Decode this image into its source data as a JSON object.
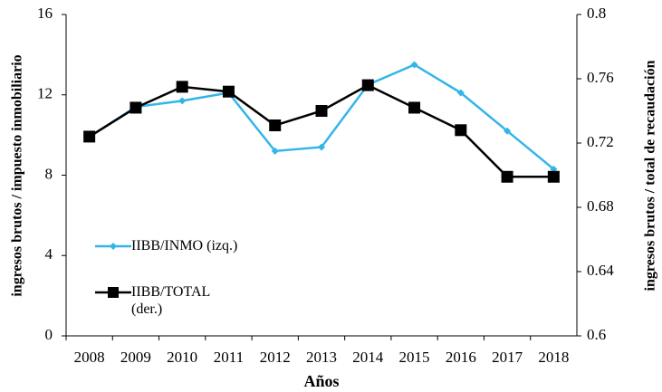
{
  "chart_data": {
    "type": "line",
    "x_label": "Años",
    "y_label": "ingresos brutos / impuesto inmobiliario",
    "y2_label": "ingresos brutos / total de recaudación",
    "categories": [
      "2008",
      "2009",
      "2010",
      "2011",
      "2012",
      "2013",
      "2014",
      "2015",
      "2016",
      "2017",
      "2018"
    ],
    "series": [
      {
        "name": "IIBB/INMO (izq.)",
        "color": "#33b5e8",
        "marker": "diamond",
        "axis": "y",
        "values": [
          9.9,
          11.4,
          11.7,
          12.1,
          9.2,
          9.4,
          12.5,
          13.5,
          12.1,
          10.2,
          8.3
        ]
      },
      {
        "name": "IIBB/TOTAL (der.)",
        "color": "#000000",
        "marker": "square",
        "axis": "y2",
        "values": [
          0.724,
          0.742,
          0.755,
          0.752,
          0.731,
          0.74,
          0.756,
          0.742,
          0.728,
          0.699,
          0.699
        ]
      }
    ],
    "ylim": [
      0,
      16
    ],
    "yticks": [
      0,
      4,
      8,
      12,
      16
    ],
    "y2lim": [
      0.6,
      0.8
    ],
    "y2ticks": [
      0.6,
      0.64,
      0.68,
      0.72,
      0.76,
      0.8
    ],
    "grid": false
  }
}
